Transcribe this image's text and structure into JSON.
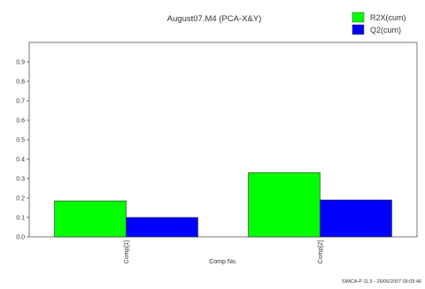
{
  "chart_data": {
    "type": "bar",
    "title": "August07.M4 (PCA-X&Y)",
    "xlabel": "Comp No.",
    "ylabel": "",
    "categories": [
      "Comp[1]",
      "Comp[2]"
    ],
    "series": [
      {
        "name": "R2X(cum)",
        "color": "#00ff00",
        "values": [
          0.185,
          0.33
        ]
      },
      {
        "name": "Q2(cum)",
        "color": "#0000ff",
        "values": [
          0.1,
          0.19
        ]
      }
    ],
    "ylim": [
      0,
      1.0
    ],
    "yticks": [
      "0.0",
      "0.1",
      "0.2",
      "0.3",
      "0.4",
      "0.5",
      "0.6",
      "0.7",
      "0.8",
      "0.9"
    ],
    "grid": false,
    "legend_position": "top-right"
  },
  "footer": "SIMCA-P 11.5 - 26/06/2007 09:09:46"
}
